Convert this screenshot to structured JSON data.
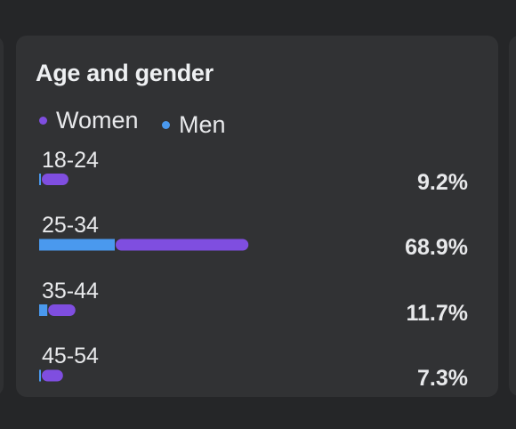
{
  "card": {
    "title": "Age and gender"
  },
  "colors": {
    "women": "#7f4ee0",
    "men": "#4a99ee",
    "background": "#252628",
    "card": "#313234"
  },
  "chart_data": {
    "type": "bar",
    "orientation": "horizontal",
    "stacked": true,
    "legend": [
      "Women",
      "Men"
    ],
    "categories": [
      "18-24",
      "25-34",
      "35-44",
      "45-54"
    ],
    "totals": [
      "9.2%",
      "68.9%",
      "11.7%",
      "7.3%"
    ],
    "series": [
      {
        "name": "Men",
        "color": "#4a99ee",
        "values": [
          0.4,
          25.0,
          2.7,
          0.3
        ]
      },
      {
        "name": "Women",
        "color": "#7f4ee0",
        "values": [
          8.8,
          43.9,
          9.0,
          7.0
        ]
      }
    ],
    "xlim": [
      0,
      100
    ],
    "grid": false,
    "legend_position": "top-left"
  }
}
